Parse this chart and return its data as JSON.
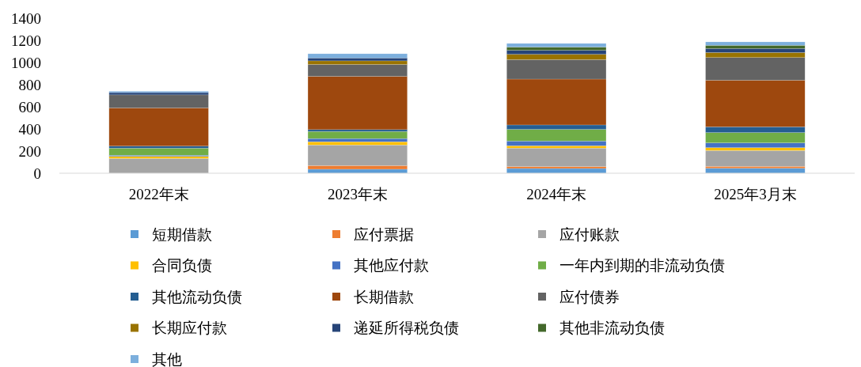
{
  "chart_data": {
    "type": "bar",
    "stacked": true,
    "categories": [
      "2022年末",
      "2023年末",
      "2024年末",
      "2025年3月末"
    ],
    "ylim": [
      0,
      1400
    ],
    "yticks": [
      0,
      200,
      400,
      600,
      800,
      1000,
      1200,
      1400
    ],
    "grid": false,
    "legend": "bottom",
    "series": [
      {
        "name": "短期借款",
        "color": "#5b9bd5",
        "values": [
          null,
          36,
          43,
          45
        ]
      },
      {
        "name": "应付票据",
        "color": "#ed7d31",
        "values": [
          null,
          33,
          17,
          17
        ]
      },
      {
        "name": "应付账款",
        "color": "#a5a5a5",
        "values": [
          133,
          186,
          167,
          143
        ]
      },
      {
        "name": "合同负债",
        "color": "#ffc000",
        "values": [
          19,
          29,
          21,
          26
        ]
      },
      {
        "name": "其他应付款",
        "color": "#4472c4",
        "values": [
          10,
          29,
          43,
          43
        ]
      },
      {
        "name": "一年内到期的非流动负债",
        "color": "#70ad47",
        "values": [
          64,
          64,
          105,
          93
        ]
      },
      {
        "name": "其他流动负债",
        "color": "#255e91",
        "values": [
          19,
          17,
          40,
          52
        ]
      },
      {
        "name": "长期借款",
        "color": "#9e480e",
        "values": [
          345,
          481,
          414,
          421
        ]
      },
      {
        "name": "应付债券",
        "color": "#636363",
        "values": [
          118,
          107,
          176,
          205
        ]
      },
      {
        "name": "长期应付款",
        "color": "#997300",
        "values": [
          0,
          33,
          48,
          45
        ]
      },
      {
        "name": "递延所得税负债",
        "color": "#264478",
        "values": [
          20,
          26,
          36,
          36
        ]
      },
      {
        "name": "其他非流动负债",
        "color": "#43682b",
        "values": [
          0,
          0,
          29,
          29
        ]
      },
      {
        "name": "其他",
        "color": "#7cafdd",
        "values": [
          12,
          38,
          33,
          31
        ]
      }
    ]
  }
}
